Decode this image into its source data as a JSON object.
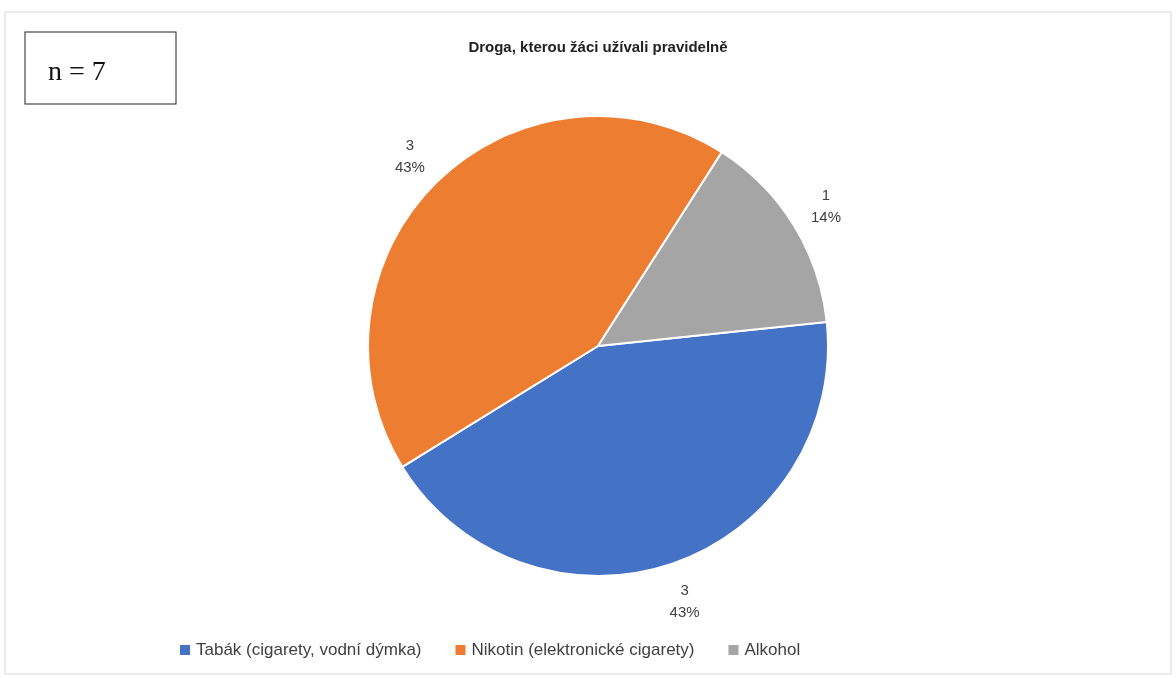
{
  "chart_data": {
    "type": "pie",
    "title": "Droga, kterou žáci užívali pravidelně",
    "categories": [
      "Tabák (cigarety, vodní dýmka)",
      "Nikotin (elektronické cigarety)",
      "Alkohol"
    ],
    "values": [
      3,
      3,
      1
    ],
    "value_labels": [
      "3\n43%",
      "3\n43%",
      "1\n14%"
    ],
    "colors": [
      "#4472c4",
      "#ed7d31",
      "#a5a5a5"
    ],
    "legend": "bottom",
    "annotations": [
      "n = 7"
    ]
  }
}
